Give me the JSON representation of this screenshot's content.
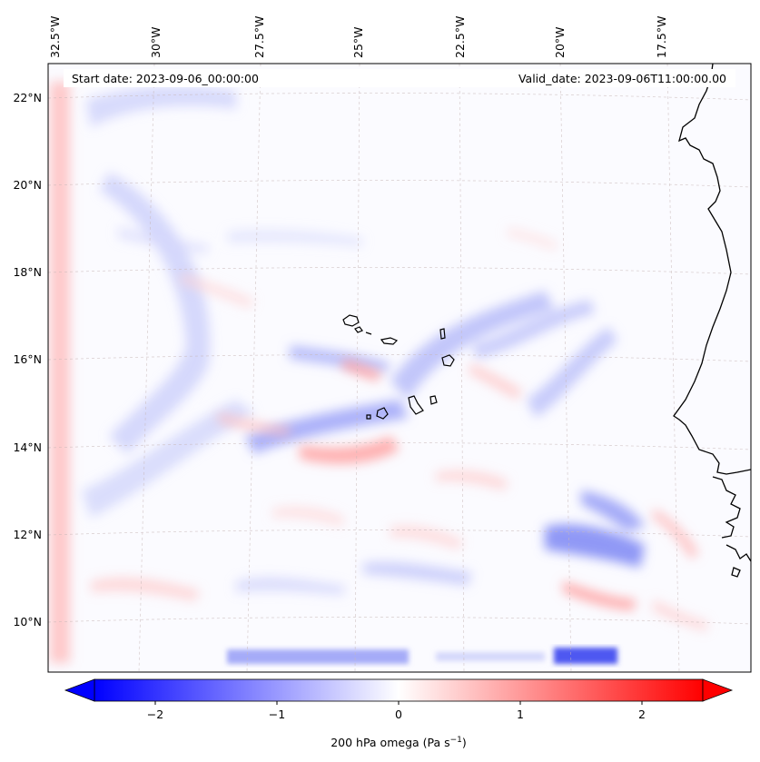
{
  "header": {
    "start_date": "Start date: 2023-09-06_00:00:00",
    "valid_date": "Valid_date: 2023-09-06T11:00:00.00"
  },
  "axes": {
    "top_lon_labels": [
      "32.5°W",
      "30°W",
      "27.5°W",
      "25°W",
      "22.5°W",
      "20°W",
      "17.5°W"
    ],
    "left_lat_labels": [
      "22°N",
      "20°N",
      "18°N",
      "16°N",
      "14°N",
      "12°N",
      "10°N"
    ]
  },
  "colorbar": {
    "label": "200 hPa omega (Pa s",
    "label_sup": "−1",
    "label_close": ")",
    "ticks": [
      "−2",
      "−1",
      "0",
      "1",
      "2"
    ],
    "min": -2.6,
    "max": 2.6,
    "low_color": "#0000ff",
    "mid_color": "#ffffff",
    "high_color": "#ff0000"
  },
  "map": {
    "land_label": "coastline",
    "projection": "lambert-conformal"
  }
}
